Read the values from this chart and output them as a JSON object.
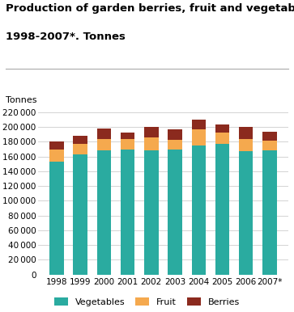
{
  "title_line1": "Production of garden berries, fruit and vegetables.",
  "title_line2": "1998-2007*. Tonnes",
  "ylabel": "Tonnes",
  "years": [
    "1998",
    "1999",
    "2000",
    "2001",
    "2002",
    "2003",
    "2004",
    "2005",
    "2006",
    "2007*"
  ],
  "vegetables": [
    153000,
    163000,
    168000,
    169000,
    168000,
    170000,
    175000,
    177000,
    167000,
    168000
  ],
  "fruit": [
    17000,
    14000,
    16000,
    15000,
    18000,
    13000,
    22000,
    16000,
    17000,
    14000
  ],
  "berries": [
    10000,
    11000,
    14000,
    9000,
    14000,
    14000,
    13000,
    10000,
    16000,
    12000
  ],
  "veg_color": "#2aaba0",
  "fruit_color": "#f5a94e",
  "berry_color": "#8b2a1e",
  "bg_color": "#ffffff",
  "grid_color": "#cccccc",
  "ylim": [
    0,
    220000
  ],
  "yticks": [
    0,
    20000,
    40000,
    60000,
    80000,
    100000,
    120000,
    140000,
    160000,
    180000,
    200000,
    220000
  ],
  "legend_labels": [
    "Vegetables",
    "Fruit",
    "Berries"
  ],
  "title_fontsize": 9.5,
  "label_fontsize": 8,
  "tick_fontsize": 7.5,
  "bar_width": 0.6
}
